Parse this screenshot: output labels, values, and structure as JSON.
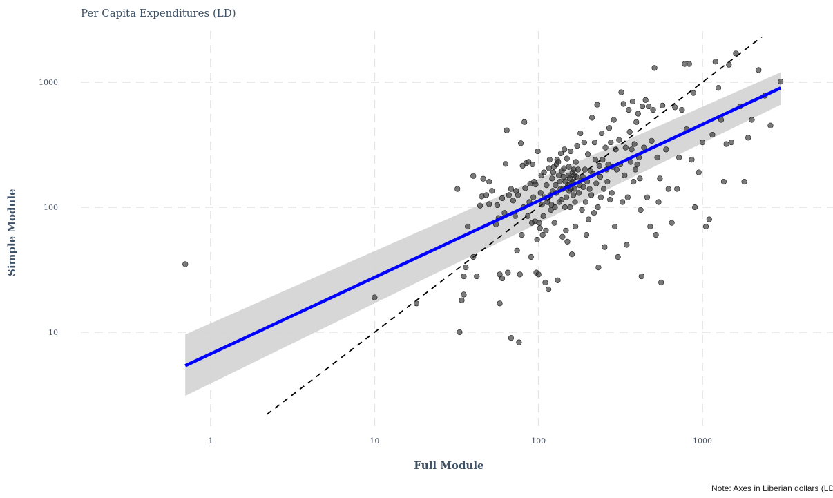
{
  "title": "Per Capita Expenditures (LD)",
  "note": "Note: Axes in Liberian dollars (LD), log scale",
  "chart_data": {
    "type": "scatter",
    "title": "Per Capita Expenditures (LD)",
    "xlabel": "Full Module",
    "ylabel": "Simple Module",
    "x_scale": "log10",
    "y_scale": "log10",
    "xlim": [
      0.7,
      3000
    ],
    "ylim": [
      2.1,
      2000
    ],
    "x_ticks": [
      1,
      10,
      100,
      1000
    ],
    "x_tick_labels": [
      "1",
      "10",
      "100",
      "1000"
    ],
    "y_ticks": [
      10,
      100,
      1000
    ],
    "y_tick_labels": [
      "10",
      "100",
      "1000"
    ],
    "grid": true,
    "legend": "none",
    "points_color": "#333333",
    "fit_line": {
      "color": "#0000ff",
      "x_start": 0.7,
      "y_start": 5.4,
      "x_end": 3000,
      "y_end": 900,
      "band_color": "#d3d3d3",
      "band_lower_at_start": 3.1,
      "band_upper_at_start": 9.6,
      "band_lower_at_end": 660,
      "band_upper_at_end": 1200
    },
    "reference_line": {
      "type": "y = x",
      "style": "dashed",
      "color": "#000000",
      "x_range": [
        2.2,
        2300
      ]
    },
    "points": [
      [
        0.7,
        35
      ],
      [
        10,
        19
      ],
      [
        18,
        17
      ],
      [
        33,
        10
      ],
      [
        32,
        140
      ],
      [
        34,
        18
      ],
      [
        35,
        20
      ],
      [
        35,
        28
      ],
      [
        36,
        33
      ],
      [
        37,
        70
      ],
      [
        40,
        40
      ],
      [
        40,
        178
      ],
      [
        42,
        28
      ],
      [
        44,
        103
      ],
      [
        45,
        122
      ],
      [
        46,
        169
      ],
      [
        48,
        125
      ],
      [
        50,
        106
      ],
      [
        50,
        160
      ],
      [
        52,
        135
      ],
      [
        55,
        73
      ],
      [
        56,
        104
      ],
      [
        57,
        82
      ],
      [
        58,
        17
      ],
      [
        58,
        29
      ],
      [
        60,
        118
      ],
      [
        60,
        27
      ],
      [
        62,
        90
      ],
      [
        63,
        222
      ],
      [
        64,
        412
      ],
      [
        65,
        30
      ],
      [
        66,
        125
      ],
      [
        68,
        140
      ],
      [
        68,
        9
      ],
      [
        70,
        113
      ],
      [
        72,
        85
      ],
      [
        73,
        135
      ],
      [
        74,
        45
      ],
      [
        75,
        125
      ],
      [
        76,
        8.3
      ],
      [
        77,
        29
      ],
      [
        78,
        325
      ],
      [
        79,
        60
      ],
      [
        80,
        215
      ],
      [
        81,
        100
      ],
      [
        82,
        480
      ],
      [
        83,
        142
      ],
      [
        84,
        225
      ],
      [
        86,
        85
      ],
      [
        87,
        230
      ],
      [
        88,
        110
      ],
      [
        89,
        154
      ],
      [
        90,
        40
      ],
      [
        91,
        75
      ],
      [
        92,
        220
      ],
      [
        93,
        120
      ],
      [
        94,
        160
      ],
      [
        95,
        77
      ],
      [
        96,
        152
      ],
      [
        97,
        30
      ],
      [
        98,
        55
      ],
      [
        99,
        280
      ],
      [
        100,
        29
      ],
      [
        101,
        75
      ],
      [
        102,
        68
      ],
      [
        103,
        130
      ],
      [
        104,
        180
      ],
      [
        105,
        105
      ],
      [
        106,
        60
      ],
      [
        107,
        85
      ],
      [
        108,
        190
      ],
      [
        109,
        120
      ],
      [
        110,
        25
      ],
      [
        111,
        65
      ],
      [
        112,
        150
      ],
      [
        113,
        110
      ],
      [
        115,
        22
      ],
      [
        116,
        205
      ],
      [
        117,
        240
      ],
      [
        118,
        125
      ],
      [
        119,
        95
      ],
      [
        120,
        105
      ],
      [
        121,
        170
      ],
      [
        122,
        135
      ],
      [
        123,
        190
      ],
      [
        124,
        210
      ],
      [
        125,
        75
      ],
      [
        126,
        100
      ],
      [
        127,
        150
      ],
      [
        128,
        130
      ],
      [
        129,
        220
      ],
      [
        130,
        240
      ],
      [
        131,
        26
      ],
      [
        132,
        230
      ],
      [
        133,
        180
      ],
      [
        134,
        110
      ],
      [
        135,
        160
      ],
      [
        136,
        140
      ],
      [
        137,
        270
      ],
      [
        138,
        115
      ],
      [
        139,
        195
      ],
      [
        140,
        58
      ],
      [
        141,
        140
      ],
      [
        142,
        175
      ],
      [
        143,
        205
      ],
      [
        144,
        290
      ],
      [
        145,
        100
      ],
      [
        146,
        160
      ],
      [
        147,
        65
      ],
      [
        148,
        120
      ],
      [
        149,
        245
      ],
      [
        150,
        53
      ],
      [
        151,
        150
      ],
      [
        152,
        180
      ],
      [
        153,
        210
      ],
      [
        154,
        135
      ],
      [
        155,
        170
      ],
      [
        156,
        100
      ],
      [
        157,
        280
      ],
      [
        158,
        140
      ],
      [
        159,
        155
      ],
      [
        160,
        42
      ],
      [
        161,
        190
      ],
      [
        162,
        160
      ],
      [
        163,
        125
      ],
      [
        164,
        200
      ],
      [
        165,
        180
      ],
      [
        166,
        140
      ],
      [
        167,
        110
      ],
      [
        168,
        70
      ],
      [
        169,
        230
      ],
      [
        170,
        175
      ],
      [
        172,
        310
      ],
      [
        174,
        200
      ],
      [
        176,
        130
      ],
      [
        178,
        150
      ],
      [
        180,
        390
      ],
      [
        182,
        165
      ],
      [
        184,
        95
      ],
      [
        186,
        175
      ],
      [
        188,
        145
      ],
      [
        190,
        330
      ],
      [
        192,
        200
      ],
      [
        194,
        110
      ],
      [
        196,
        60
      ],
      [
        198,
        160
      ],
      [
        200,
        265
      ],
      [
        202,
        80
      ],
      [
        205,
        140
      ],
      [
        208,
        195
      ],
      [
        210,
        125
      ],
      [
        212,
        520
      ],
      [
        215,
        185
      ],
      [
        218,
        90
      ],
      [
        220,
        330
      ],
      [
        222,
        240
      ],
      [
        225,
        155
      ],
      [
        228,
        660
      ],
      [
        230,
        100
      ],
      [
        232,
        33
      ],
      [
        235,
        215
      ],
      [
        238,
        175
      ],
      [
        240,
        120
      ],
      [
        243,
        390
      ],
      [
        246,
        240
      ],
      [
        250,
        140
      ],
      [
        253,
        48
      ],
      [
        256,
        300
      ],
      [
        260,
        200
      ],
      [
        263,
        160
      ],
      [
        266,
        220
      ],
      [
        270,
        430
      ],
      [
        273,
        115
      ],
      [
        276,
        330
      ],
      [
        280,
        130
      ],
      [
        284,
        210
      ],
      [
        288,
        500
      ],
      [
        292,
        70
      ],
      [
        296,
        290
      ],
      [
        300,
        200
      ],
      [
        305,
        40
      ],
      [
        310,
        345
      ],
      [
        315,
        220
      ],
      [
        320,
        830
      ],
      [
        325,
        110
      ],
      [
        330,
        670
      ],
      [
        335,
        180
      ],
      [
        340,
        300
      ],
      [
        345,
        50
      ],
      [
        350,
        120
      ],
      [
        355,
        600
      ],
      [
        360,
        400
      ],
      [
        365,
        230
      ],
      [
        370,
        290
      ],
      [
        375,
        700
      ],
      [
        380,
        160
      ],
      [
        385,
        320
      ],
      [
        390,
        200
      ],
      [
        395,
        480
      ],
      [
        400,
        220
      ],
      [
        405,
        560
      ],
      [
        410,
        250
      ],
      [
        415,
        170
      ],
      [
        420,
        95
      ],
      [
        425,
        28
      ],
      [
        430,
        640
      ],
      [
        440,
        300
      ],
      [
        450,
        720
      ],
      [
        460,
        120
      ],
      [
        470,
        640
      ],
      [
        480,
        70
      ],
      [
        490,
        340
      ],
      [
        500,
        600
      ],
      [
        510,
        1300
      ],
      [
        520,
        60
      ],
      [
        530,
        250
      ],
      [
        540,
        110
      ],
      [
        550,
        170
      ],
      [
        560,
        25
      ],
      [
        570,
        650
      ],
      [
        600,
        290
      ],
      [
        620,
        140
      ],
      [
        650,
        75
      ],
      [
        680,
        630
      ],
      [
        700,
        140
      ],
      [
        720,
        250
      ],
      [
        750,
        600
      ],
      [
        780,
        1400
      ],
      [
        800,
        420
      ],
      [
        830,
        1400
      ],
      [
        860,
        240
      ],
      [
        880,
        820
      ],
      [
        900,
        100
      ],
      [
        950,
        190
      ],
      [
        1000,
        330
      ],
      [
        1050,
        70
      ],
      [
        1100,
        80
      ],
      [
        1150,
        380
      ],
      [
        1200,
        1460
      ],
      [
        1250,
        900
      ],
      [
        1300,
        500
      ],
      [
        1350,
        160
      ],
      [
        1400,
        320
      ],
      [
        1450,
        1380
      ],
      [
        1500,
        330
      ],
      [
        1600,
        1700
      ],
      [
        1700,
        640
      ],
      [
        1800,
        160
      ],
      [
        1900,
        360
      ],
      [
        2000,
        500
      ],
      [
        2200,
        1250
      ],
      [
        2400,
        780
      ],
      [
        2600,
        450
      ],
      [
        3000,
        1010
      ]
    ]
  }
}
